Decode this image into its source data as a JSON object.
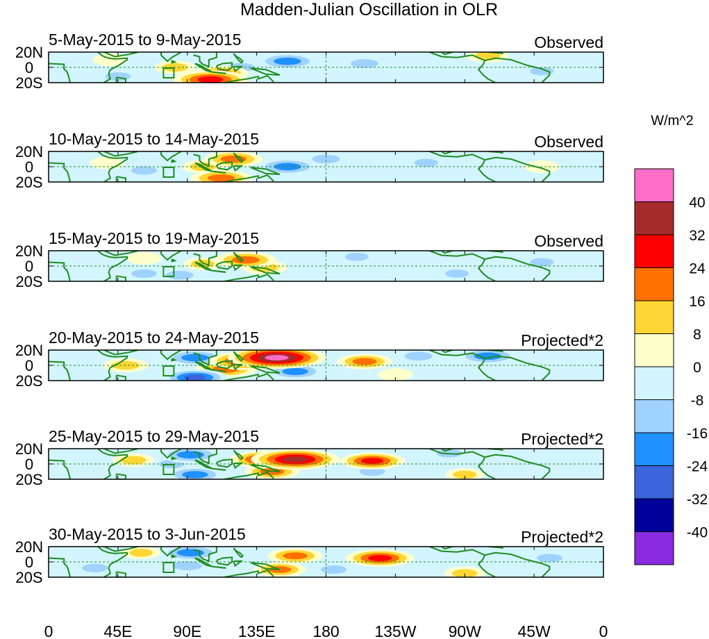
{
  "chart_data": {
    "type": "heatmap",
    "title": "Madden-Julian Oscillation in OLR",
    "x_ticks": [
      "0",
      "45E",
      "90E",
      "135E",
      "180",
      "135W",
      "90W",
      "45W",
      "0"
    ],
    "y_ticks": [
      "20N",
      "0",
      "20S"
    ],
    "x_range_deg": [
      0,
      360
    ],
    "y_range_deg": [
      -20,
      20
    ],
    "reference_lines": {
      "equator": 0,
      "dateline": 180
    },
    "units": "W/m^2",
    "colorbar": {
      "levels": [
        "40",
        "32",
        "24",
        "16",
        "8",
        "0",
        "-8",
        "-16",
        "-24",
        "-32",
        "-40"
      ],
      "colors": [
        "#ff6ec8",
        "#a52a2a",
        "#ff0000",
        "#ff7000",
        "#ffd633",
        "#ffffcc",
        "#d2f5ff",
        "#a0d2ff",
        "#1e90ff",
        "#3c64dc",
        "#00009b",
        "#8a2be2"
      ]
    },
    "panels": [
      {
        "date_range": "5-May-2015 to 9-May-2015",
        "label": "Observed",
        "features": [
          {
            "lon": 105,
            "lat": -16,
            "value": 30
          },
          {
            "lon": 112,
            "lat": -8,
            "value": 18
          },
          {
            "lon": 82,
            "lat": 0,
            "value": 10
          },
          {
            "lon": 40,
            "lat": 10,
            "value": 6
          },
          {
            "lon": 285,
            "lat": 15,
            "value": 10
          },
          {
            "lon": 155,
            "lat": 8,
            "value": -22
          },
          {
            "lon": 125,
            "lat": 0,
            "value": -12
          },
          {
            "lon": 205,
            "lat": 5,
            "value": -12
          },
          {
            "lon": 45,
            "lat": -12,
            "value": -10
          },
          {
            "lon": 320,
            "lat": -5,
            "value": -8
          }
        ]
      },
      {
        "date_range": "10-May-2015 to 14-May-2015",
        "label": "Observed",
        "features": [
          {
            "lon": 112,
            "lat": -15,
            "value": 22
          },
          {
            "lon": 120,
            "lat": 10,
            "value": 20
          },
          {
            "lon": 100,
            "lat": 0,
            "value": 10
          },
          {
            "lon": 38,
            "lat": 5,
            "value": 6
          },
          {
            "lon": 155,
            "lat": 0,
            "value": -22
          },
          {
            "lon": 180,
            "lat": 10,
            "value": -12
          },
          {
            "lon": 62,
            "lat": -5,
            "value": -10
          },
          {
            "lon": 245,
            "lat": 5,
            "value": -8
          },
          {
            "lon": 320,
            "lat": 0,
            "value": 6
          }
        ]
      },
      {
        "date_range": "15-May-2015 to 19-May-2015",
        "label": "Observed",
        "features": [
          {
            "lon": 128,
            "lat": 8,
            "value": 22
          },
          {
            "lon": 140,
            "lat": -2,
            "value": 12
          },
          {
            "lon": 100,
            "lat": 3,
            "value": 8
          },
          {
            "lon": 62,
            "lat": 10,
            "value": 6
          },
          {
            "lon": 85,
            "lat": -12,
            "value": -12
          },
          {
            "lon": 62,
            "lat": -10,
            "value": -10
          },
          {
            "lon": 200,
            "lat": 12,
            "value": -8
          },
          {
            "lon": 265,
            "lat": -10,
            "value": -8
          },
          {
            "lon": 320,
            "lat": 5,
            "value": -8
          }
        ]
      },
      {
        "date_range": "20-May-2015 to 24-May-2015",
        "label": "Projected*2",
        "features": [
          {
            "lon": 148,
            "lat": 10,
            "value": 44
          },
          {
            "lon": 128,
            "lat": 6,
            "value": 30
          },
          {
            "lon": 115,
            "lat": -5,
            "value": 22
          },
          {
            "lon": 205,
            "lat": 5,
            "value": 18
          },
          {
            "lon": 50,
            "lat": 0,
            "value": 12
          },
          {
            "lon": 225,
            "lat": -12,
            "value": 6
          },
          {
            "lon": 95,
            "lat": 10,
            "value": -22
          },
          {
            "lon": 95,
            "lat": -16,
            "value": -24
          },
          {
            "lon": 160,
            "lat": -8,
            "value": -20
          },
          {
            "lon": 285,
            "lat": 12,
            "value": -22
          },
          {
            "lon": 240,
            "lat": 12,
            "value": -12
          }
        ]
      },
      {
        "date_range": "25-May-2015 to 29-May-2015",
        "label": "Projected*2",
        "features": [
          {
            "lon": 160,
            "lat": 6,
            "value": 38
          },
          {
            "lon": 140,
            "lat": 6,
            "value": 26
          },
          {
            "lon": 210,
            "lat": 4,
            "value": 24
          },
          {
            "lon": 145,
            "lat": -10,
            "value": 18
          },
          {
            "lon": 55,
            "lat": 5,
            "value": 10
          },
          {
            "lon": 270,
            "lat": -14,
            "value": 8
          },
          {
            "lon": 92,
            "lat": 12,
            "value": -22
          },
          {
            "lon": 95,
            "lat": -14,
            "value": -20
          },
          {
            "lon": 80,
            "lat": 0,
            "value": -10
          },
          {
            "lon": 210,
            "lat": -10,
            "value": -10
          },
          {
            "lon": 260,
            "lat": 14,
            "value": -10
          }
        ]
      },
      {
        "date_range": "30-May-2015 to 3-Jun-2015",
        "label": "Projected*2",
        "features": [
          {
            "lon": 215,
            "lat": 5,
            "value": 26
          },
          {
            "lon": 160,
            "lat": 8,
            "value": 18
          },
          {
            "lon": 150,
            "lat": -10,
            "value": 16
          },
          {
            "lon": 60,
            "lat": 12,
            "value": 8
          },
          {
            "lon": 270,
            "lat": -15,
            "value": 10
          },
          {
            "lon": 92,
            "lat": 12,
            "value": -22
          },
          {
            "lon": 90,
            "lat": -5,
            "value": -14
          },
          {
            "lon": 30,
            "lat": -8,
            "value": -10
          },
          {
            "lon": 185,
            "lat": -10,
            "value": -10
          },
          {
            "lon": 325,
            "lat": 5,
            "value": -10
          }
        ]
      }
    ]
  }
}
